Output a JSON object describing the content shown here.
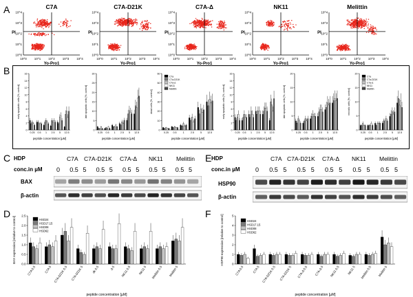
{
  "panel_labels": {
    "A": "A",
    "B": "B",
    "C": "C",
    "D": "D",
    "E": "E",
    "F": "F"
  },
  "flow": {
    "plots": [
      {
        "title": "C7A"
      },
      {
        "title": "C7A-D21K"
      },
      {
        "title": "C7A-Δ"
      },
      {
        "title": "NK11"
      },
      {
        "title": "Melittin"
      }
    ],
    "x_label": "Yo-Pro1",
    "y_label": "PI",
    "ticks": [
      "10^0",
      "10^1",
      "10^2",
      "10^3",
      "10^4"
    ]
  },
  "blot_c": {
    "title": "HDP",
    "headers": [
      "C7A",
      "C7A-D21K",
      "C7A-Δ",
      "NK11",
      "Melittin"
    ],
    "conc_label": "conc.in µM",
    "conc": [
      "0",
      "0.5",
      "5",
      "0.5",
      "5",
      "0.5",
      "5",
      "0.5",
      "5",
      "0.5",
      "5"
    ],
    "rows": [
      "BAX",
      "β-actin"
    ]
  },
  "blot_e": {
    "title": "HDP",
    "headers": [
      "C7A",
      "C7A-D21K",
      "C7A-Δ",
      "NK11",
      "Melittin"
    ],
    "conc_label": "conc.in µM",
    "conc": [
      "0",
      "0.5",
      "5",
      "0.5",
      "5",
      "0.5",
      "5",
      "0.5",
      "5",
      "0.5",
      "5"
    ],
    "rows": [
      "HSP90",
      "β-actin"
    ]
  },
  "chart_data": [
    {
      "panel": "B",
      "type": "bar",
      "ylabel": "early apoptotic cells [%, control]",
      "xlabel": "peptide concentration [µM]",
      "categories": [
        "0.25",
        "0.5",
        "1",
        "2.5",
        "5",
        "12.5"
      ],
      "ylim": [
        0,
        18
      ],
      "yticks": [
        "0",
        "2",
        "4",
        "6",
        "8",
        "10",
        "12",
        "14",
        "16"
      ],
      "series": [
        {
          "values": [
            3,
            2.5,
            1.5,
            1.3,
            2.5,
            1
          ]
        },
        {
          "values": [
            2,
            2.5,
            2.5,
            3,
            2,
            5
          ]
        },
        {
          "values": [
            2.5,
            2,
            3,
            2.5,
            4,
            6
          ]
        },
        {
          "values": [
            2,
            2,
            2.5,
            3,
            4.5,
            4
          ]
        },
        {
          "values": [
            1.5,
            2,
            2,
            2.5,
            3,
            6
          ]
        }
      ]
    },
    {
      "panel": "B",
      "type": "bar",
      "ylabel": "late apoptotic cells [%, control]",
      "xlabel": "peptide concentration [µM]",
      "categories": [
        "0.25",
        "0.5",
        "1",
        "2.5",
        "5",
        "12.5"
      ],
      "ylim": [
        0,
        35
      ],
      "yticks": [
        "0",
        "5",
        "10",
        "15",
        "20",
        "25",
        "30"
      ],
      "series": [
        {
          "values": [
            2,
            1,
            3,
            4,
            6,
            10
          ]
        },
        {
          "values": [
            1,
            1.5,
            2,
            3,
            10,
            15
          ]
        },
        {
          "values": [
            1,
            1,
            2,
            5,
            12,
            14
          ]
        },
        {
          "values": [
            2,
            2,
            3,
            4,
            11,
            20
          ]
        },
        {
          "values": [
            1,
            1,
            2,
            6,
            10,
            21
          ]
        }
      ]
    },
    {
      "panel": "B",
      "type": "bar",
      "ylabel": "dead cells [%, control]",
      "xlabel": "peptide concentration [µM]",
      "categories": [
        "0.25",
        "0.5",
        "1",
        "2.5",
        "5",
        "12.5"
      ],
      "ylim": [
        0,
        70
      ],
      "yticks": [
        "0",
        "10",
        "20",
        "30",
        "40",
        "50",
        "60"
      ],
      "legend": [
        "C7a",
        "C7a-D21K",
        "C7a-Δ",
        "NK11",
        "Melittin"
      ],
      "series": [
        {
          "values": [
            3,
            4,
            6,
            15,
            28,
            35
          ]
        },
        {
          "values": [
            2,
            3,
            5,
            12,
            20,
            30
          ]
        },
        {
          "values": [
            3,
            4,
            8,
            16,
            26,
            38
          ]
        },
        {
          "values": [
            2,
            3,
            5,
            10,
            22,
            34
          ]
        },
        {
          "values": [
            2,
            3,
            6,
            14,
            25,
            36
          ]
        }
      ]
    },
    {
      "panel": "B",
      "type": "bar",
      "ylabel": "early apoptotic cells [%, control]",
      "xlabel": "peptide concentration [µM]",
      "categories": [
        "0.25",
        "0.5",
        "1",
        "2.5",
        "5",
        "12.5"
      ],
      "ylim": [
        0,
        18
      ],
      "yticks": [
        "0",
        "2",
        "4",
        "6",
        "8",
        "10",
        "12",
        "14",
        "16"
      ],
      "series": [
        {
          "values": [
            4,
            3,
            5,
            6,
            5,
            3
          ]
        },
        {
          "values": [
            3,
            4,
            4,
            5,
            6,
            9
          ]
        },
        {
          "values": [
            4,
            5,
            6,
            6,
            7,
            8
          ]
        },
        {
          "values": [
            5,
            4,
            5,
            6,
            7,
            6
          ]
        },
        {
          "values": [
            3,
            4,
            4,
            5,
            6,
            10
          ]
        }
      ]
    },
    {
      "panel": "B",
      "type": "bar",
      "ylabel": "late apoptotic cells [%, control]",
      "xlabel": "peptide concentration [µM]",
      "categories": [
        "0.25",
        "0.5",
        "1",
        "2.5",
        "5",
        "12.5"
      ],
      "ylim": [
        0,
        25
      ],
      "yticks": [
        "0",
        "5",
        "10",
        "15",
        "20"
      ],
      "series": [
        {
          "values": [
            4,
            3,
            5,
            6,
            9,
            12
          ]
        },
        {
          "values": [
            3,
            4,
            6,
            8,
            10,
            13
          ]
        },
        {
          "values": [
            5,
            5,
            7,
            9,
            12,
            14
          ]
        },
        {
          "values": [
            4,
            4,
            6,
            9,
            11,
            13
          ]
        },
        {
          "values": [
            3,
            5,
            6,
            8,
            12,
            14
          ]
        }
      ]
    },
    {
      "panel": "B",
      "type": "bar",
      "ylabel": "necrotic cells [%, control]",
      "xlabel": "peptide concentration [µM]",
      "categories": [
        "0.25",
        "0.5",
        "1",
        "2.5",
        "5",
        "12.5"
      ],
      "ylim": [
        0,
        25
      ],
      "yticks": [
        "0",
        "5",
        "10",
        "15",
        "20"
      ],
      "legend": [
        "C7a",
        "C7a-D21K",
        "C7a-Δ",
        "NK11",
        "Melittin"
      ],
      "series": [
        {
          "values": [
            2,
            2,
            3,
            3,
            6,
            12
          ]
        },
        {
          "values": [
            2,
            2,
            2,
            4,
            7,
            14
          ]
        },
        {
          "values": [
            3,
            2,
            3,
            4,
            8,
            11
          ]
        },
        {
          "values": [
            2,
            3,
            3,
            5,
            7,
            13
          ]
        },
        {
          "values": [
            2,
            2,
            3,
            4,
            8,
            10
          ]
        }
      ]
    },
    {
      "panel": "D",
      "type": "bar",
      "ylabel": "BAX expression [relative to control]",
      "xlabel": "peptide concentration [µM]",
      "categories": [
        "C7A 0.5",
        "C7A 5",
        "C7A-D21K 0.5",
        "C7A-D21K 5",
        "dk 0.5",
        "Δ 5",
        "NK11 0.5",
        "NK11 5",
        "Melittin 0.5",
        "Melittin 5"
      ],
      "ylim": [
        0,
        2.5
      ],
      "yticks": [
        "0.0",
        "0.5",
        "1.0",
        "1.5",
        "2.0",
        "2.5"
      ],
      "legend": [
        "HSD24",
        "HSD17.15",
        "HSD08",
        "HSD62"
      ],
      "series": [
        {
          "values": [
            1.1,
            0.9,
            1.5,
            0.8,
            0.8,
            0.9,
            0.9,
            0.8,
            0.8,
            1.2
          ]
        },
        {
          "values": [
            0.9,
            1.0,
            1.7,
            0.6,
            0.9,
            0.8,
            0.8,
            0.9,
            0.9,
            1.3
          ]
        },
        {
          "values": [
            0.8,
            0.9,
            1.2,
            0.5,
            0.8,
            0.8,
            0.7,
            0.8,
            0.8,
            1.2
          ]
        },
        {
          "values": [
            1.1,
            1.2,
            1.9,
            1.6,
            1.8,
            2.1,
            1.7,
            1.7,
            0.9,
            1.9
          ]
        }
      ]
    },
    {
      "panel": "F",
      "type": "bar",
      "ylabel": "HSP90 expression [relative to control]",
      "xlabel": "peptide concentration [µM]",
      "categories": [
        "C7A 0.5",
        "C7A 5",
        "C7A-D21K 0.5",
        "C7A-D21K 5",
        "C7A-Δ 0.5",
        "C7A-Δ 5",
        "NK11 0.5",
        "NK11 5",
        "Melittin 0.5",
        "Melittin 5"
      ],
      "ylim": [
        0,
        5
      ],
      "yticks": [
        "0",
        "1",
        "2",
        "3",
        "4",
        "5"
      ],
      "legend": [
        "HSD24",
        "HSD17.15",
        "HSD08",
        "HSD62"
      ],
      "series": [
        {
          "values": [
            1.0,
            1.6,
            1.0,
            1.0,
            1.0,
            1.0,
            1.0,
            0.9,
            1.0,
            2.8
          ]
        },
        {
          "values": [
            0.9,
            0.8,
            0.9,
            0.9,
            0.9,
            0.8,
            0.8,
            0.8,
            0.9,
            2.0
          ]
        },
        {
          "values": [
            1.0,
            0.9,
            1.0,
            0.9,
            0.9,
            1.0,
            0.9,
            1.0,
            1.0,
            2.2
          ]
        },
        {
          "values": [
            0.6,
            1.0,
            1.0,
            1.1,
            1.0,
            1.0,
            1.1,
            1.0,
            1.1,
            1.8
          ]
        }
      ]
    }
  ]
}
